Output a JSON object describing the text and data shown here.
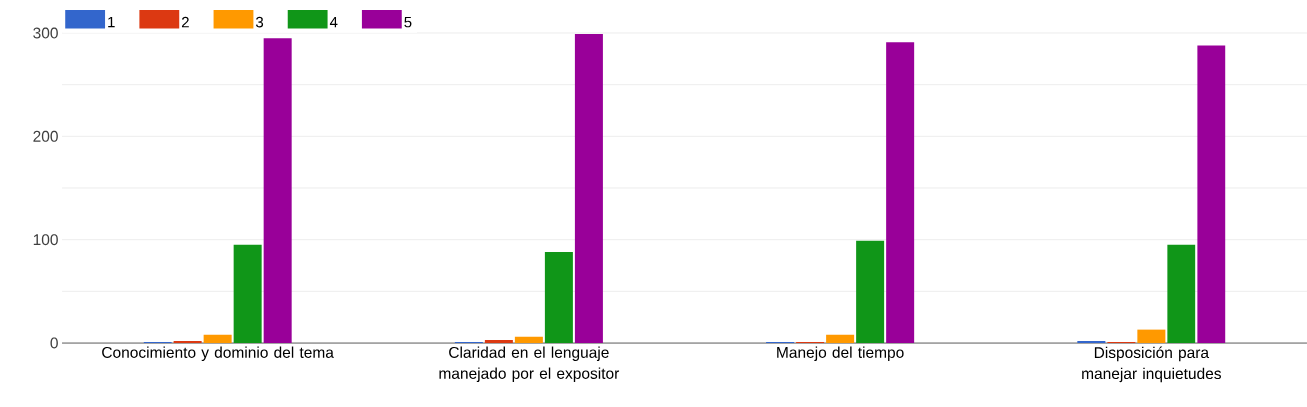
{
  "chart_data": {
    "type": "bar",
    "categories": [
      "Conocimiento y dominio del tema",
      "Claridad en el lenguaje manejado por el expositor",
      "Manejo del tiempo",
      "Disposición para manejar inquietudes"
    ],
    "series": [
      {
        "name": "1",
        "color": "#3366cc",
        "values": [
          1,
          1,
          1,
          2
        ]
      },
      {
        "name": "2",
        "color": "#dc3912",
        "values": [
          2,
          3,
          1,
          1
        ]
      },
      {
        "name": "3",
        "color": "#ff9900",
        "values": [
          8,
          6,
          8,
          13
        ]
      },
      {
        "name": "4",
        "color": "#109618",
        "values": [
          95,
          88,
          99,
          95
        ]
      },
      {
        "name": "5",
        "color": "#990099",
        "values": [
          295,
          299,
          291,
          288
        ]
      }
    ],
    "ylim": [
      0,
      300
    ],
    "yticks": [
      0,
      {
        "value": 50,
        "label": null
      },
      100,
      {
        "value": 150,
        "label": null
      },
      200,
      {
        "value": 250,
        "label": null
      },
      300
    ],
    "grid": "y",
    "legend": "top left"
  }
}
